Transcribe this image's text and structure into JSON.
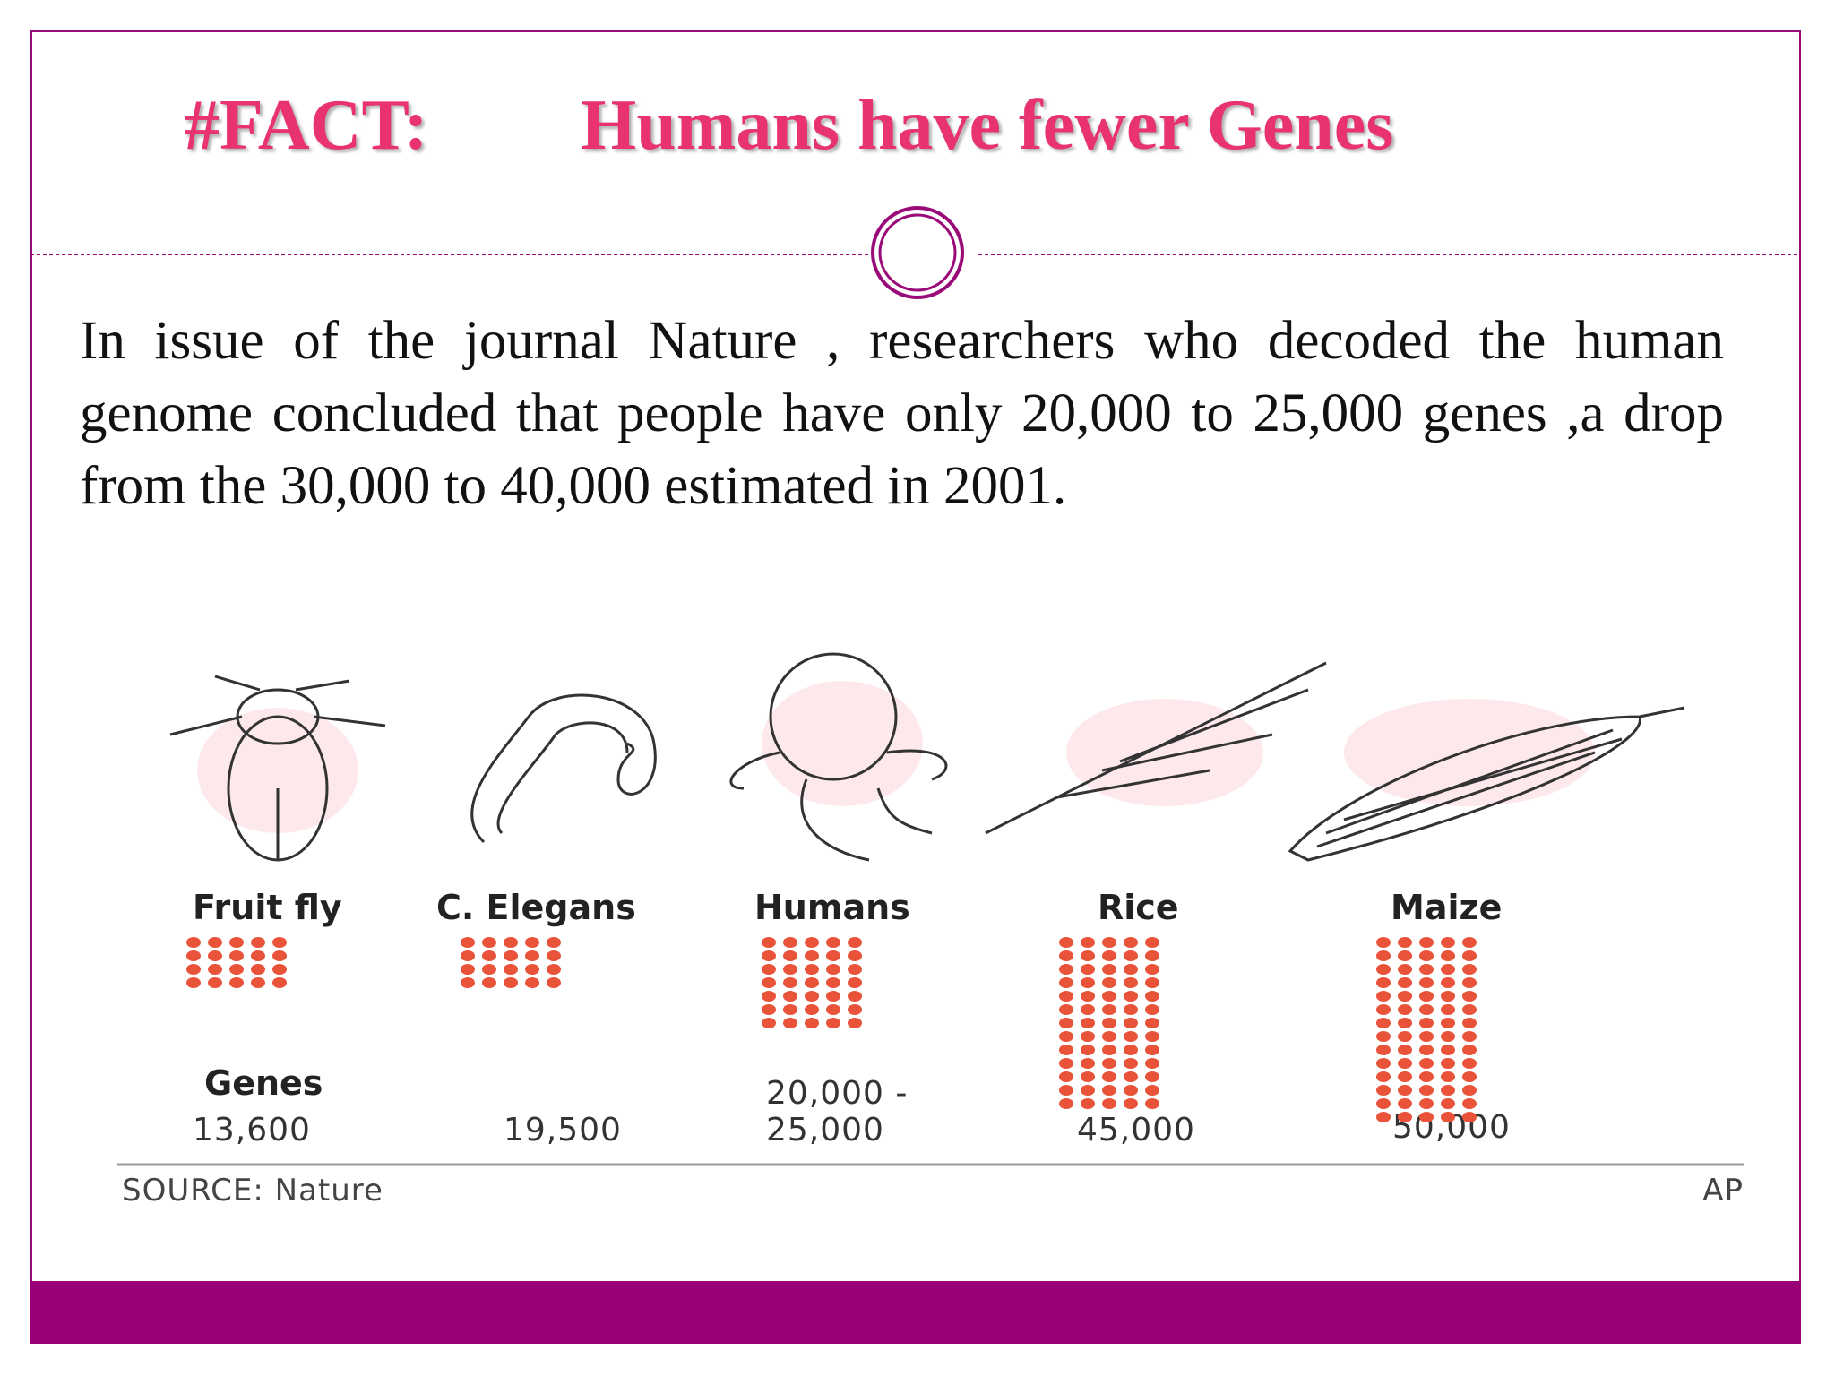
{
  "title": {
    "tag": "#FACT:",
    "text": "Humans have fewer Genes"
  },
  "body": "In issue of the journal Nature , researchers who decoded the human genome concluded that people have only 20,000 to 25,000 genes ,a drop from the 30,000 to 40,000 estimated in 2001.",
  "infographic": {
    "organisms": [
      {
        "name": "Fruit fly",
        "genes": "13,600"
      },
      {
        "name": "C. Elegans",
        "genes": "19,500"
      },
      {
        "name": "Humans",
        "genes": [
          "20,000 -",
          "25,000"
        ]
      },
      {
        "name": "Rice",
        "genes": "45,000"
      },
      {
        "name": "Maize",
        "genes": "50,000"
      }
    ],
    "genes_label": "Genes",
    "source": "SOURCE: Nature",
    "credit": "AP"
  }
}
